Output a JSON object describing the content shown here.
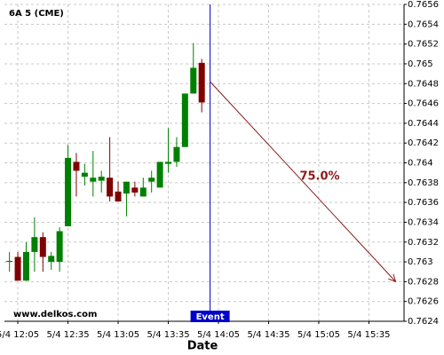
{
  "chart_data": {
    "type": "candlestick",
    "title": "6A 5 (CME)",
    "x_label": "Date",
    "watermark": "www.delkos.com",
    "x": [
      "5/4 12:00",
      "5/4 12:05",
      "5/4 12:10",
      "5/4 12:15",
      "5/4 12:20",
      "5/4 12:25",
      "5/4 12:30",
      "5/4 12:35",
      "5/4 12:40",
      "5/4 12:45",
      "5/4 12:50",
      "5/4 12:55",
      "5/4 13:00",
      "5/4 13:05",
      "5/4 13:10",
      "5/4 13:15",
      "5/4 13:20",
      "5/4 13:25",
      "5/4 13:30",
      "5/4 13:35",
      "5/4 13:40",
      "5/4 13:45",
      "5/4 13:50",
      "5/4 13:55"
    ],
    "open": [
      0.763,
      0.76305,
      0.76281,
      0.7631,
      0.76325,
      0.763,
      0.763,
      0.76336,
      0.76401,
      0.76386,
      0.76381,
      0.76382,
      0.76385,
      0.76371,
      0.76369,
      0.76375,
      0.76366,
      0.76381,
      0.76375,
      0.76399,
      0.76401,
      0.76416,
      0.7647,
      0.76501
    ],
    "high": [
      0.7631,
      0.7631,
      0.7632,
      0.76345,
      0.7633,
      0.7631,
      0.76335,
      0.76418,
      0.7641,
      0.76399,
      0.76412,
      0.76392,
      0.76426,
      0.76381,
      0.76381,
      0.76381,
      0.76385,
      0.76392,
      0.76401,
      0.76435,
      0.76426,
      0.7647,
      0.76521,
      0.76505
    ],
    "low": [
      0.7629,
      0.76281,
      0.76281,
      0.7629,
      0.7629,
      0.76292,
      0.7629,
      0.76336,
      0.76366,
      0.76377,
      0.76366,
      0.7637,
      0.76361,
      0.76361,
      0.76346,
      0.76366,
      0.76366,
      0.7637,
      0.76375,
      0.7639,
      0.76396,
      0.76416,
      0.7647,
      0.76451
    ],
    "close": [
      0.76301,
      0.76281,
      0.7631,
      0.76325,
      0.76305,
      0.76306,
      0.76331,
      0.76405,
      0.76392,
      0.7639,
      0.76385,
      0.76386,
      0.76366,
      0.76361,
      0.76381,
      0.7637,
      0.76375,
      0.76385,
      0.76401,
      0.76401,
      0.76416,
      0.7647,
      0.76496,
      0.76461
    ],
    "up_color": "#008000",
    "down_color": "#800000",
    "xlim": [
      "5/4 11:57",
      "5/4 15:56"
    ],
    "xticks": [
      "5/4 12:05",
      "5/4 12:35",
      "5/4 13:05",
      "5/4 13:35",
      "5/4 14:05",
      "5/4 14:35",
      "5/4 15:05",
      "5/4 15:35"
    ],
    "ylim": [
      0.7624,
      0.7656
    ],
    "yticks": [
      0.7624,
      0.7626,
      0.7628,
      0.763,
      0.7632,
      0.7634,
      0.7636,
      0.7638,
      0.764,
      0.7642,
      0.7644,
      0.7646,
      0.7648,
      0.765,
      0.7652,
      0.7654,
      0.7656
    ],
    "grid": true,
    "event": {
      "x": "5/4 14:00",
      "label": "Event",
      "color": "#0000cc"
    },
    "arrow": {
      "from_x": "5/4 14:00",
      "from_y": 0.76482,
      "to_x": "5/4 15:51",
      "to_y": 0.7628,
      "label": "75.0%",
      "color": "#8b1a1a"
    }
  }
}
